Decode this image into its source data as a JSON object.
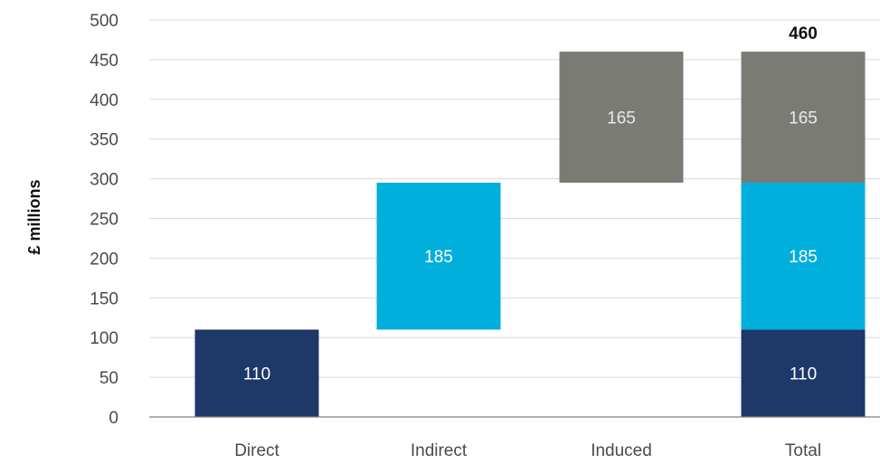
{
  "chart_data": {
    "type": "bar",
    "subtype": "waterfall",
    "title": "",
    "xlabel": "",
    "ylabel": "£ millions",
    "ylim": [
      0,
      500
    ],
    "yticks": [
      0,
      50,
      100,
      150,
      200,
      250,
      300,
      350,
      400,
      450,
      500
    ],
    "categories": [
      "Direct",
      "Indirect",
      "Induced",
      "Total"
    ],
    "grid": true,
    "legend": "none",
    "colors": {
      "direct": "#1e3869",
      "indirect": "#00afdb",
      "induced": "#7b7b76",
      "grid": "#d9d9d9",
      "axis": "#808080"
    },
    "series": [
      {
        "key": "direct",
        "values": [
          110,
          0,
          0,
          110
        ],
        "bases": [
          0,
          0,
          0,
          0
        ],
        "labels": [
          "110",
          "",
          "",
          "110"
        ]
      },
      {
        "key": "indirect",
        "values": [
          0,
          185,
          0,
          185
        ],
        "bases": [
          0,
          110,
          0,
          110
        ],
        "labels": [
          "",
          "185",
          "",
          "185"
        ]
      },
      {
        "key": "induced",
        "values": [
          0,
          0,
          165,
          165
        ],
        "bases": [
          0,
          0,
          295,
          295
        ],
        "labels": [
          "",
          "",
          "165",
          "165"
        ]
      }
    ],
    "total_label": "460"
  }
}
